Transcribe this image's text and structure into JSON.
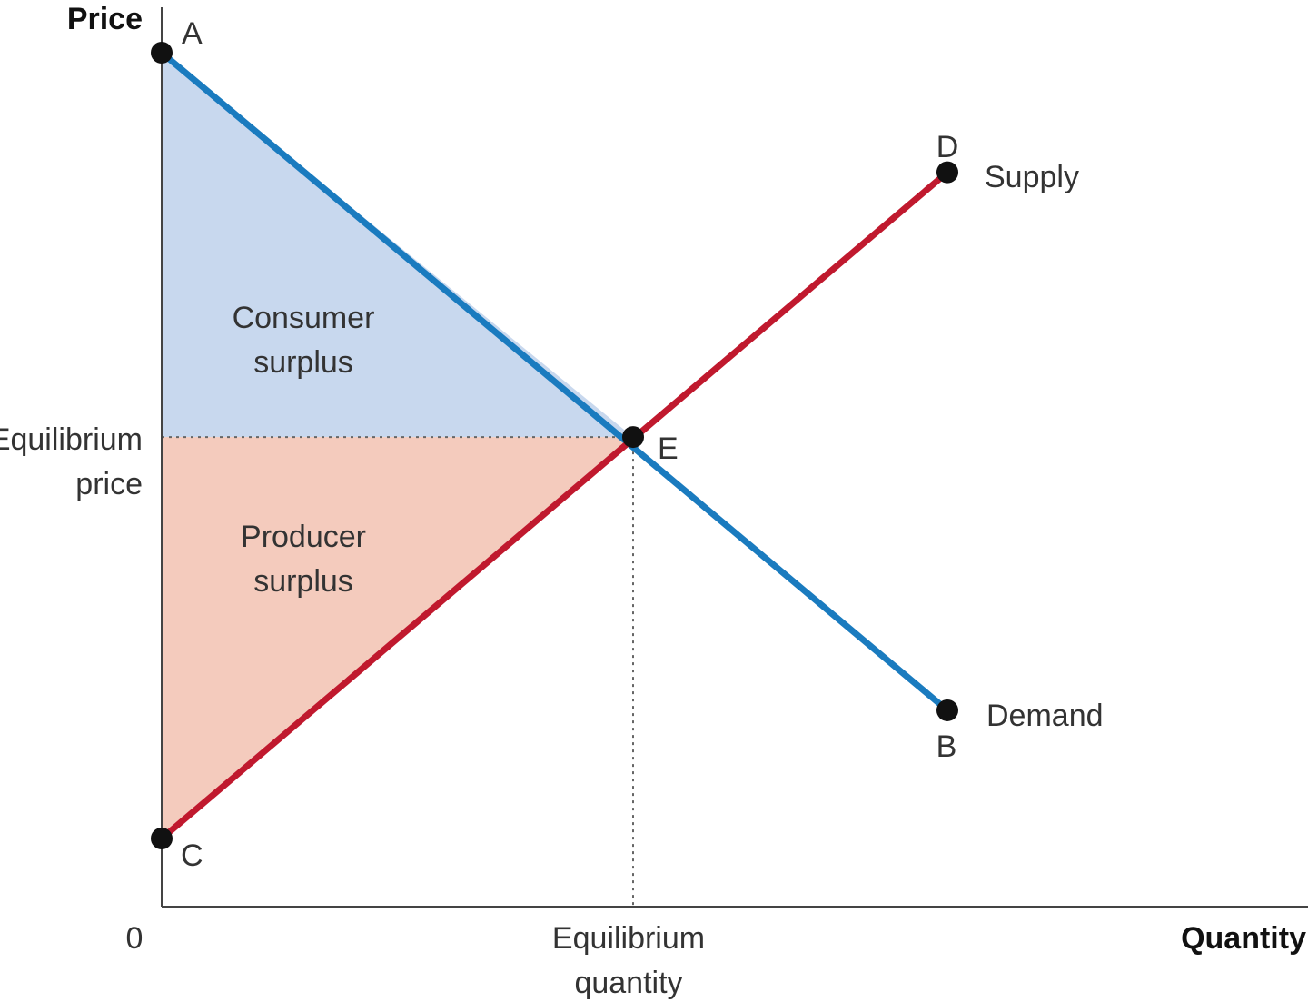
{
  "chart_data": {
    "type": "line",
    "xlabel": "Quantity",
    "ylabel": "Price",
    "origin_label": "0",
    "equilibrium_price_label": [
      "Equilibrium",
      "price"
    ],
    "equilibrium_quantity_label": [
      "Equilibrium",
      "quantity"
    ],
    "series": [
      {
        "name": "Demand",
        "color": "#1a7bbf",
        "points": [
          {
            "label": "A",
            "x": 0,
            "y": 100
          },
          {
            "label": "E",
            "x": 60,
            "y": 55
          },
          {
            "label": "B",
            "x": 100,
            "y": 23
          }
        ]
      },
      {
        "name": "Supply",
        "color": "#c0192e",
        "points": [
          {
            "label": "C",
            "x": 0,
            "y": 8
          },
          {
            "label": "E",
            "x": 60,
            "y": 55
          },
          {
            "label": "D",
            "x": 100,
            "y": 86
          }
        ]
      }
    ],
    "equilibrium": {
      "label": "E",
      "x": 60,
      "y": 55
    },
    "regions": [
      {
        "name": "consumer_surplus",
        "text": [
          "Consumer",
          "surplus"
        ],
        "color": "#c8d8ee",
        "vertices": [
          "A",
          "E",
          "equilibrium-price-axis"
        ]
      },
      {
        "name": "producer_surplus",
        "text": [
          "Producer",
          "surplus"
        ],
        "color": "#f4cbbd",
        "vertices": [
          "C",
          "E",
          "equilibrium-price-axis"
        ]
      }
    ],
    "xlim": [
      0,
      147
    ],
    "ylim": [
      0,
      105
    ],
    "grid": false
  }
}
